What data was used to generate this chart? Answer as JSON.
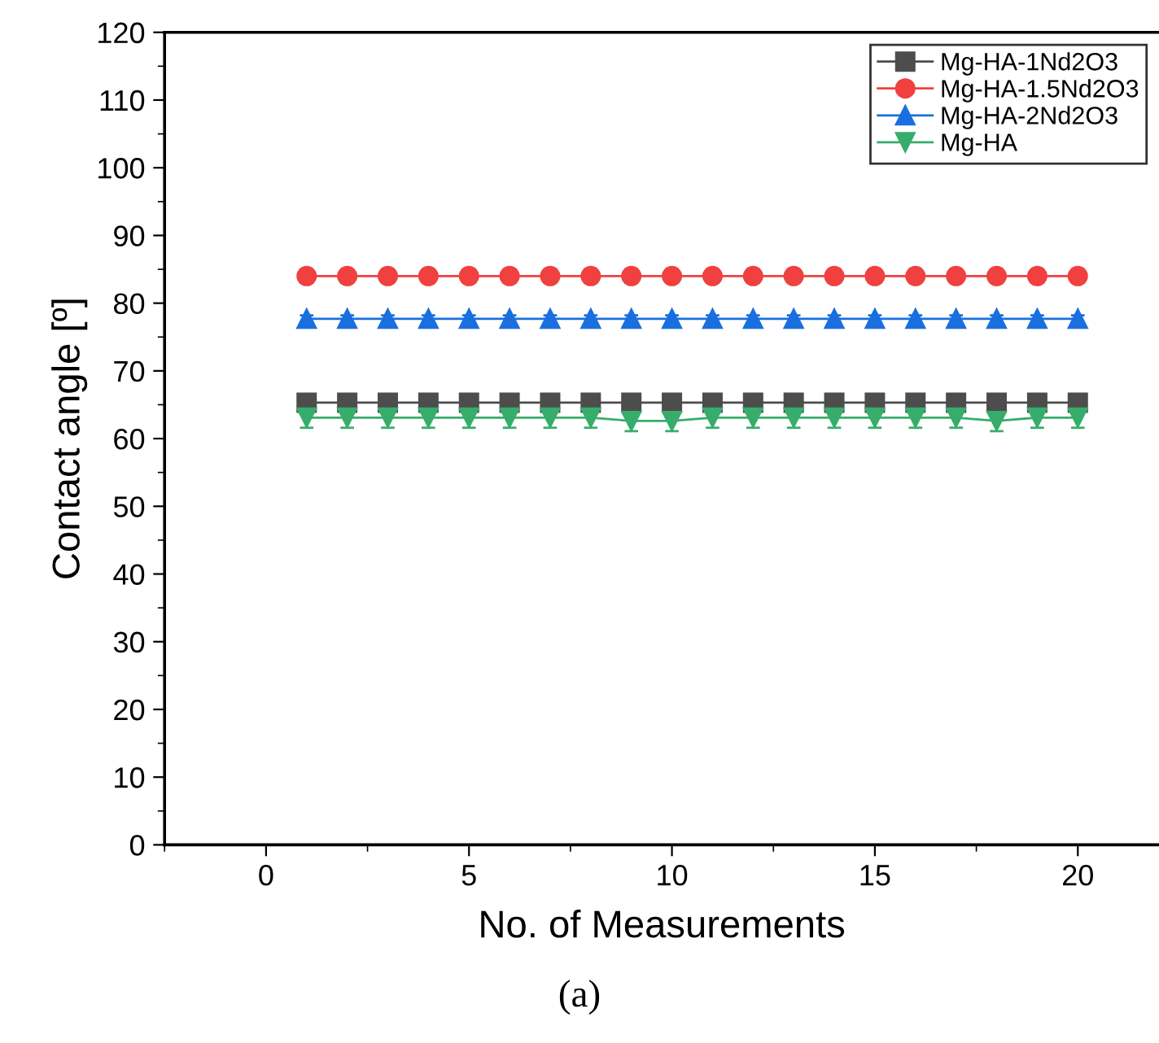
{
  "chart_data": {
    "type": "line",
    "xlabel": "No. of Measurements",
    "ylabel": "Contact angle [º]",
    "x": [
      1,
      2,
      3,
      4,
      5,
      6,
      7,
      8,
      9,
      10,
      11,
      12,
      13,
      14,
      15,
      16,
      17,
      18,
      19,
      20
    ],
    "series": [
      {
        "name": "Mg-HA-1Nd2O3",
        "color": "#4d4d4d",
        "marker": "square",
        "values": [
          65.3,
          65.3,
          65.3,
          65.3,
          65.3,
          65.3,
          65.3,
          65.3,
          65.3,
          65.3,
          65.3,
          65.3,
          65.3,
          65.3,
          65.3,
          65.3,
          65.3,
          65.3,
          65.3,
          65.3
        ],
        "errors": [
          0.8,
          0.8,
          0.8,
          0.8,
          0.8,
          0.8,
          0.8,
          0.8,
          0.8,
          0.8,
          0.8,
          0.8,
          0.8,
          0.8,
          0.8,
          0.8,
          0.8,
          0.8,
          0.8,
          0.8
        ]
      },
      {
        "name": "Mg-HA-1.5Nd2O3",
        "color": "#f04040",
        "marker": "circle",
        "values": [
          84,
          84,
          84,
          84,
          84,
          84,
          84,
          84,
          84,
          84,
          84,
          84,
          84,
          84,
          84,
          84,
          84,
          84,
          84,
          84
        ],
        "errors": [
          1,
          1,
          1,
          1,
          1,
          1,
          1,
          1,
          1,
          1,
          1,
          1,
          1,
          1,
          1,
          1,
          1,
          1,
          1,
          1
        ]
      },
      {
        "name": "Mg-HA-2Nd2O3",
        "color": "#1a6fdf",
        "marker": "triangle",
        "values": [
          77.7,
          77.7,
          77.7,
          77.7,
          77.7,
          77.7,
          77.7,
          77.7,
          77.7,
          77.7,
          77.7,
          77.7,
          77.7,
          77.7,
          77.7,
          77.7,
          77.7,
          77.7,
          77.7,
          77.7
        ],
        "errors": [
          0.5,
          0.5,
          0.5,
          0.5,
          0.5,
          0.5,
          0.5,
          0.5,
          0.5,
          0.5,
          0.5,
          0.5,
          0.5,
          0.5,
          0.5,
          0.5,
          0.5,
          0.5,
          0.5,
          0.5
        ]
      },
      {
        "name": "Mg-HA",
        "color": "#37ad6b",
        "marker": "triangle_down",
        "values": [
          63.1,
          63.1,
          63.1,
          63.1,
          63.1,
          63.1,
          63.1,
          63.1,
          62.6,
          62.6,
          63.1,
          63.1,
          63.1,
          63.1,
          63.1,
          63.1,
          63.1,
          62.6,
          63.1,
          63.1
        ],
        "errors": [
          1.5,
          1.5,
          1.5,
          1.5,
          1.5,
          1.5,
          1.5,
          1.5,
          1.5,
          1.5,
          1.5,
          1.5,
          1.5,
          1.5,
          1.5,
          1.5,
          1.5,
          1.5,
          1.5,
          1.5
        ]
      }
    ],
    "xlim": [
      -2.5,
      22
    ],
    "xticks": [
      0,
      5,
      10,
      15,
      20
    ],
    "ylim": [
      0,
      120
    ],
    "yticks": [
      0,
      10,
      20,
      30,
      40,
      50,
      60,
      70,
      80,
      90,
      100,
      110,
      120
    ],
    "legend": "top right",
    "grid": false,
    "line_style": "solid",
    "annotations": [
      "(a)"
    ]
  }
}
